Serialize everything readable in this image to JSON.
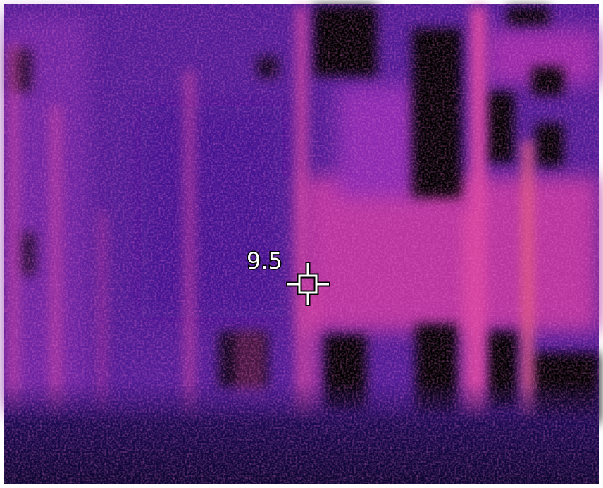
{
  "reading": {
    "value": 9.5
  }
}
